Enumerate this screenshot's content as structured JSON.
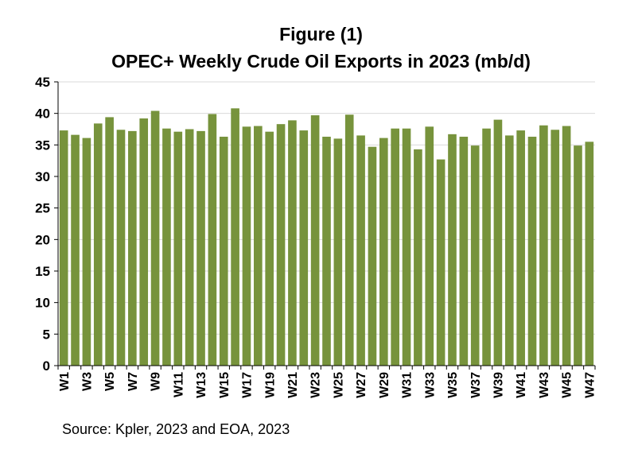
{
  "chart_data": {
    "type": "bar",
    "title": "Figure (1)",
    "subtitle": "OPEC+ Weekly Crude Oil Exports in 2023 (mb/d)",
    "xlabel": "",
    "ylabel": "",
    "ylim": [
      0,
      45
    ],
    "yticks": [
      0,
      5,
      10,
      15,
      20,
      25,
      30,
      35,
      40,
      45
    ],
    "grid": true,
    "legend": "none",
    "bar_color": "#77933C",
    "categories": [
      "W1",
      "W2",
      "W3",
      "W4",
      "W5",
      "W6",
      "W7",
      "W8",
      "W9",
      "W10",
      "W11",
      "W12",
      "W13",
      "W14",
      "W15",
      "W16",
      "W17",
      "W18",
      "W19",
      "W20",
      "W21",
      "W22",
      "W23",
      "W24",
      "W25",
      "W26",
      "W27",
      "W28",
      "W29",
      "W30",
      "W31",
      "W32",
      "W33",
      "W34",
      "W35",
      "W36",
      "W37",
      "W38",
      "W39",
      "W40",
      "W41",
      "W42",
      "W43",
      "W44",
      "W45",
      "W46",
      "W47"
    ],
    "values": [
      37.3,
      36.6,
      36.1,
      38.4,
      39.4,
      37.4,
      37.2,
      39.2,
      40.4,
      37.6,
      37.1,
      37.5,
      37.2,
      39.9,
      36.3,
      40.8,
      37.9,
      38.0,
      37.1,
      38.3,
      38.9,
      37.3,
      39.7,
      36.3,
      36.0,
      39.8,
      36.5,
      34.7,
      36.1,
      37.6,
      37.6,
      34.3,
      37.9,
      32.7,
      36.7,
      36.3,
      34.9,
      37.6,
      39.0,
      36.5,
      37.3,
      36.3,
      38.1,
      37.4,
      38.0,
      34.9,
      35.5
    ]
  },
  "source_note": "Source: Kpler, 2023 and EOA, 2023"
}
